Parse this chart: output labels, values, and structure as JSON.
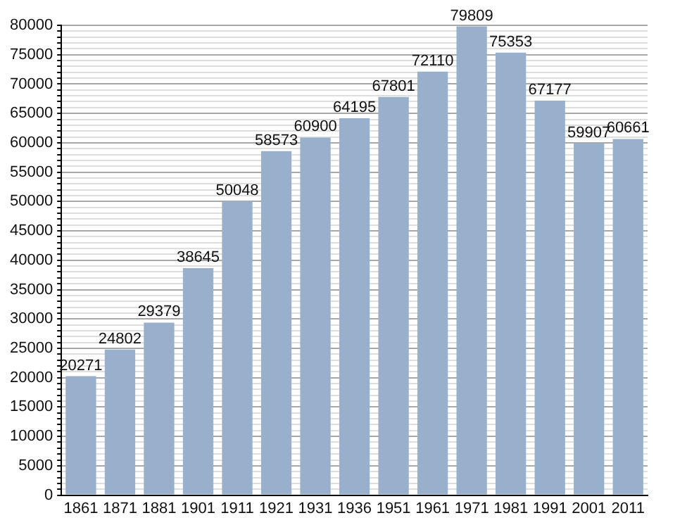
{
  "chart_data": {
    "type": "bar",
    "categories": [
      "1861",
      "1871",
      "1881",
      "1901",
      "1911",
      "1921",
      "1931",
      "1936",
      "1951",
      "1961",
      "1971",
      "1981",
      "1991",
      "2001",
      "2011"
    ],
    "values": [
      20271,
      24802,
      29379,
      38645,
      50048,
      58573,
      60900,
      64195,
      67801,
      72110,
      79809,
      75353,
      67177,
      59907,
      60661
    ],
    "color": "#98b0cc",
    "data_labels": true,
    "grid": "y",
    "legend": false,
    "ylim": [
      0,
      80000
    ],
    "yticks": [
      0,
      {
        "value": 1000,
        "label": null
      },
      {
        "value": 2000,
        "label": null
      },
      {
        "value": 3000,
        "label": null
      },
      {
        "value": 4000,
        "label": null
      },
      5000,
      {
        "value": 6000,
        "label": null
      },
      {
        "value": 7000,
        "label": null
      },
      {
        "value": 8000,
        "label": null
      },
      {
        "value": 9000,
        "label": null
      },
      10000,
      {
        "value": 11000,
        "label": null
      },
      {
        "value": 12000,
        "label": null
      },
      {
        "value": 13000,
        "label": null
      },
      {
        "value": 14000,
        "label": null
      },
      15000,
      {
        "value": 16000,
        "label": null
      },
      {
        "value": 17000,
        "label": null
      },
      {
        "value": 18000,
        "label": null
      },
      {
        "value": 19000,
        "label": null
      },
      20000,
      {
        "value": 21000,
        "label": null
      },
      {
        "value": 22000,
        "label": null
      },
      {
        "value": 23000,
        "label": null
      },
      {
        "value": 24000,
        "label": null
      },
      25000,
      {
        "value": 26000,
        "label": null
      },
      {
        "value": 27000,
        "label": null
      },
      {
        "value": 28000,
        "label": null
      },
      {
        "value": 29000,
        "label": null
      },
      30000,
      {
        "value": 31000,
        "label": null
      },
      {
        "value": 32000,
        "label": null
      },
      {
        "value": 33000,
        "label": null
      },
      {
        "value": 34000,
        "label": null
      },
      35000,
      {
        "value": 36000,
        "label": null
      },
      {
        "value": 37000,
        "label": null
      },
      {
        "value": 38000,
        "label": null
      },
      {
        "value": 39000,
        "label": null
      },
      40000,
      {
        "value": 41000,
        "label": null
      },
      {
        "value": 42000,
        "label": null
      },
      {
        "value": 43000,
        "label": null
      },
      {
        "value": 44000,
        "label": null
      },
      45000,
      {
        "value": 46000,
        "label": null
      },
      {
        "value": 47000,
        "label": null
      },
      {
        "value": 48000,
        "label": null
      },
      {
        "value": 49000,
        "label": null
      },
      50000,
      {
        "value": 51000,
        "label": null
      },
      {
        "value": 52000,
        "label": null
      },
      {
        "value": 53000,
        "label": null
      },
      {
        "value": 54000,
        "label": null
      },
      55000,
      {
        "value": 56000,
        "label": null
      },
      {
        "value": 57000,
        "label": null
      },
      {
        "value": 58000,
        "label": null
      },
      {
        "value": 59000,
        "label": null
      },
      60000,
      {
        "value": 61000,
        "label": null
      },
      {
        "value": 62000,
        "label": null
      },
      {
        "value": 63000,
        "label": null
      },
      {
        "value": 64000,
        "label": null
      },
      65000,
      {
        "value": 66000,
        "label": null
      },
      {
        "value": 67000,
        "label": null
      },
      {
        "value": 68000,
        "label": null
      },
      {
        "value": 69000,
        "label": null
      },
      70000,
      {
        "value": 71000,
        "label": null
      },
      {
        "value": 72000,
        "label": null
      },
      {
        "value": 73000,
        "label": null
      },
      {
        "value": 74000,
        "label": null
      },
      75000,
      {
        "value": 76000,
        "label": null
      },
      {
        "value": 77000,
        "label": null
      },
      {
        "value": 78000,
        "label": null
      },
      {
        "value": 79000,
        "label": null
      },
      80000
    ]
  }
}
